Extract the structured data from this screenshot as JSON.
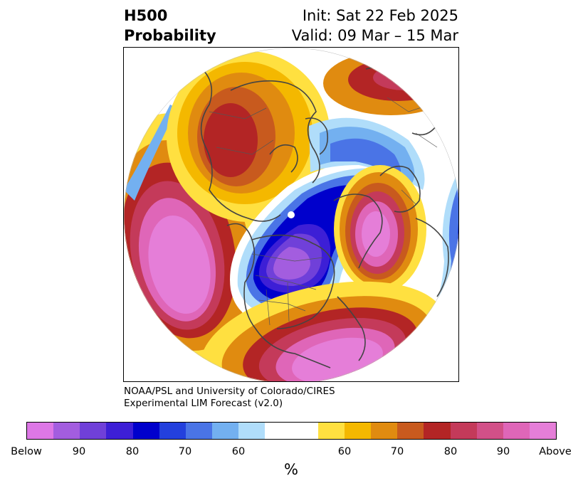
{
  "header": {
    "title_line1": "H500",
    "title_line2": "Probability",
    "init": "Init: Sat 22 Feb 2025",
    "valid": "Valid: 09 Mar – 15 Mar"
  },
  "credit": {
    "line1": "NOAA/PSL and University of Colorado/CIRES",
    "line2": "Experimental LIM Forecast (v2.0)"
  },
  "colorbar": {
    "colors": [
      "#dd77e6",
      "#a35ddf",
      "#7040d9",
      "#3d1fd6",
      "#0000cc",
      "#2340dd",
      "#4a74e6",
      "#73b0f0",
      "#b0ddfa",
      "#ffffff",
      "#ffffff",
      "#ffe040",
      "#f4b800",
      "#e08b10",
      "#c85a1e",
      "#b32525",
      "#c43a5a",
      "#d25088",
      "#df66b8",
      "#e57ed8"
    ],
    "labels": [
      "Below",
      "90",
      "80",
      "70",
      "60",
      "60",
      "70",
      "80",
      "90",
      "Above"
    ],
    "unit": "%"
  },
  "map": {
    "projection": "north polar stereographic",
    "variable": "500 hPa height probability",
    "palette": {
      "blue_deep": "#0000cc",
      "blue": "#2340dd",
      "purple": "#7040d9",
      "violet": "#a35ddf",
      "lightblue": "#73b0f0",
      "paleblue": "#b0ddfa",
      "yellow": "#ffe040",
      "gold": "#f4b800",
      "orange": "#e08b10",
      "rust": "#c85a1e",
      "red": "#b32525",
      "rose": "#c43a5a",
      "pink": "#df66b8",
      "magenta": "#e57ed8",
      "coast": "#444444"
    }
  }
}
